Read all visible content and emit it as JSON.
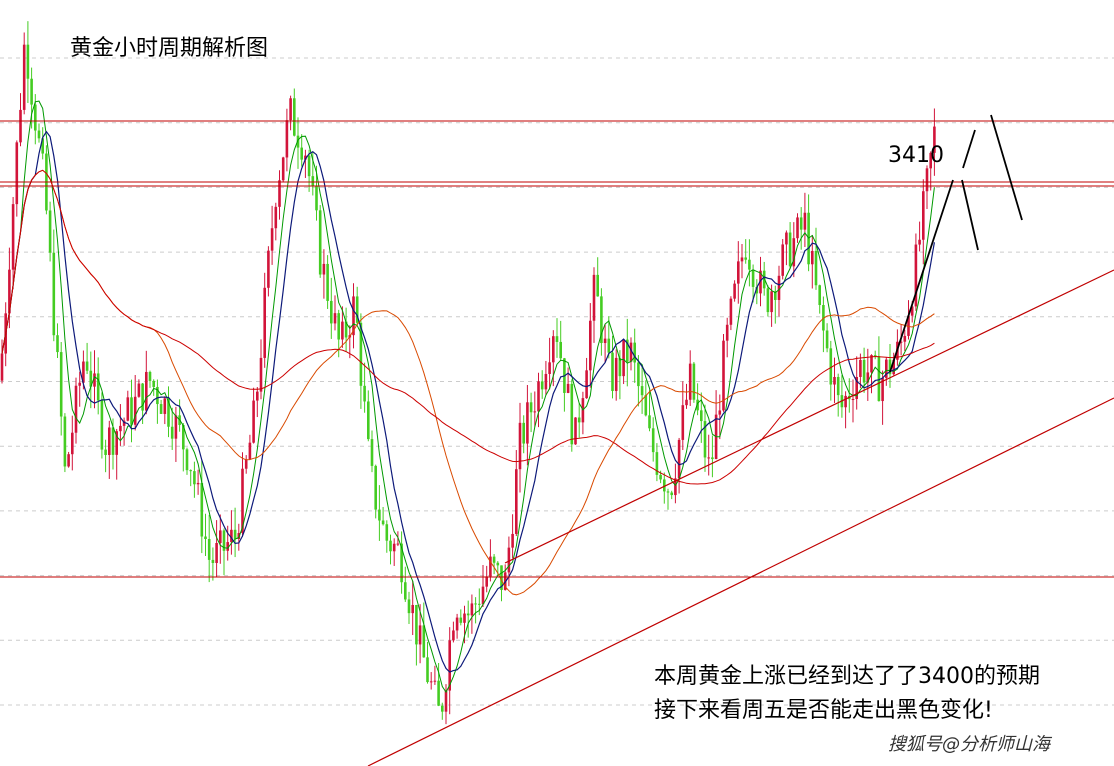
{
  "title": "黄金小时周期解析图",
  "price_label": "3410",
  "note_line1": "本周黄金上涨已经到达了了3400的预期",
  "note_line2": "接下来看周五是否能走出黑色变化!",
  "watermark": "搜狐号@分析师山海",
  "colors": {
    "background": "#ffffff",
    "grid": "#cccccc",
    "up_candle": "#d2143a",
    "down_candle": "#44cc22",
    "resistance": "#c00000",
    "trendline": "#c00000",
    "ma_fast": "#0d1a7a",
    "ma_mid": "#009900",
    "ma_slow": "#d94a00",
    "ma_long": "#cc0000",
    "projection": "#000000"
  },
  "chart_data": {
    "type": "candlestick",
    "title": "黄金小时周期解析图",
    "annotations": [
      "3410",
      "本周黄金上涨已经到达了了3400的预期",
      "接下来看周五是否能走出黑色变化!"
    ],
    "y_range": [
      3210,
      3440
    ],
    "key_levels": [
      3420,
      3400,
      3235
    ],
    "price_path": [
      [
        0,
        3320
      ],
      [
        25,
        3430
      ],
      [
        45,
        3380
      ],
      [
        65,
        3290
      ],
      [
        85,
        3330
      ],
      [
        105,
        3300
      ],
      [
        130,
        3310
      ],
      [
        150,
        3320
      ],
      [
        170,
        3310
      ],
      [
        190,
        3295
      ],
      [
        210,
        3262
      ],
      [
        235,
        3270
      ],
      [
        255,
        3310
      ],
      [
        275,
        3380
      ],
      [
        290,
        3405
      ],
      [
        305,
        3395
      ],
      [
        320,
        3360
      ],
      [
        340,
        3330
      ],
      [
        355,
        3345
      ],
      [
        370,
        3290
      ],
      [
        385,
        3270
      ],
      [
        400,
        3265
      ],
      [
        420,
        3235
      ],
      [
        440,
        3212
      ],
      [
        455,
        3250
      ],
      [
        470,
        3245
      ],
      [
        490,
        3260
      ],
      [
        505,
        3255
      ],
      [
        520,
        3300
      ],
      [
        540,
        3320
      ],
      [
        555,
        3340
      ],
      [
        575,
        3300
      ],
      [
        595,
        3350
      ],
      [
        610,
        3320
      ],
      [
        630,
        3330
      ],
      [
        650,
        3300
      ],
      [
        670,
        3285
      ],
      [
        690,
        3320
      ],
      [
        710,
        3290
      ],
      [
        725,
        3330
      ],
      [
        745,
        3365
      ],
      [
        765,
        3345
      ],
      [
        785,
        3360
      ],
      [
        805,
        3370
      ],
      [
        820,
        3340
      ],
      [
        840,
        3310
      ],
      [
        860,
        3325
      ],
      [
        880,
        3320
      ],
      [
        900,
        3330
      ],
      [
        915,
        3355
      ],
      [
        935,
        3400
      ]
    ],
    "projection_label": "3410"
  }
}
